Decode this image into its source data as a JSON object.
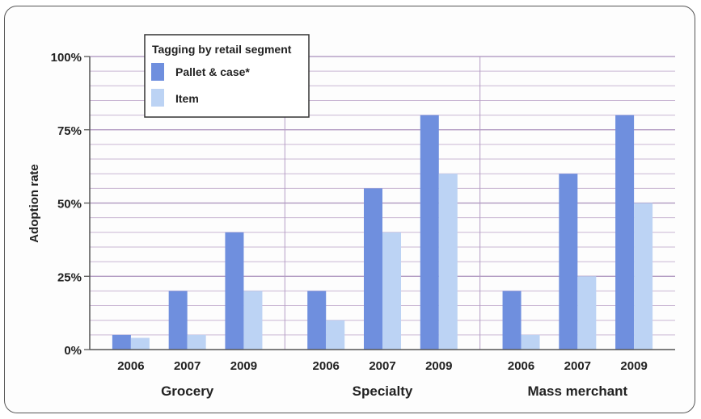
{
  "chart_data": {
    "type": "bar",
    "ylabel": "Adoption rate",
    "ylim": [
      0,
      100
    ],
    "yticks": [
      "0%",
      "25%",
      "50%",
      "75%",
      "100%"
    ],
    "ytick_values": [
      0,
      25,
      50,
      75,
      100
    ],
    "grid": true,
    "legend": {
      "title": "Tagging by retail segment",
      "placement": "top-left",
      "entries": [
        "Pallet & case*",
        "Item"
      ]
    },
    "groups": [
      {
        "name": "Grocery",
        "years": [
          "2006",
          "2007",
          "2009"
        ]
      },
      {
        "name": "Specialty",
        "years": [
          "2006",
          "2007",
          "2009"
        ]
      },
      {
        "name": "Mass merchant",
        "years": [
          "2006",
          "2007",
          "2009"
        ]
      }
    ],
    "series": [
      {
        "name": "Pallet & case*",
        "color": "#6f8fde",
        "values": [
          [
            5,
            20,
            40
          ],
          [
            20,
            55,
            80
          ],
          [
            20,
            60,
            80
          ]
        ]
      },
      {
        "name": "Item",
        "color": "#bcd3f4",
        "values": [
          [
            4,
            5,
            20
          ],
          [
            10,
            40,
            60
          ],
          [
            5,
            25,
            50
          ]
        ]
      }
    ],
    "colors": {
      "grid": "#c9b6d3",
      "axis": "#555555",
      "frame": "#555555"
    }
  }
}
